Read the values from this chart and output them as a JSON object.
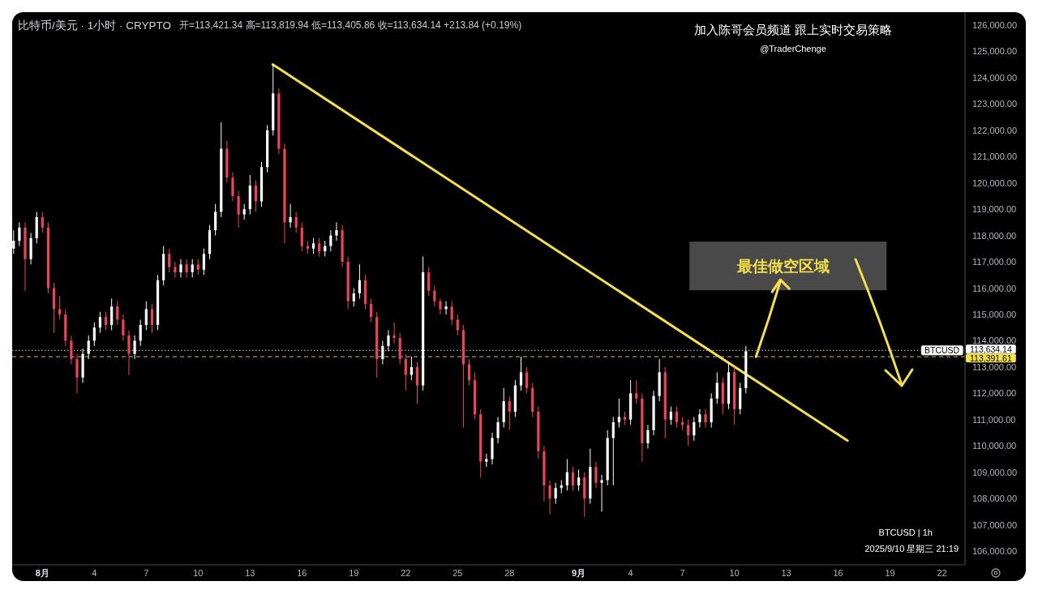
{
  "chart_data": {
    "type": "candlestick",
    "title": "比特币/美元 · 1小时 · CRYPTO",
    "subtitle": "开=113,421.34 高=113,819.94 低=113,405.86 收=113,634.14 +213.84 (+0.19%)",
    "annotations": [
      "加入陈哥会员频道 跟上实时交易策略",
      "@TraderChenge",
      {
        "text": "最佳做空区域",
        "x": "2025-09-11T06:00",
        "y": 113391.61
      },
      {
        "text": "BTCUSD",
        "x": "2025-09-22T00:00",
        "y": 113634.14
      },
      "BTCUSD | 1h",
      "2025/9/10 星期三 21:19"
    ],
    "xlim": [
      "2025-07-30T06:00",
      "2025-09-23T08:00"
    ],
    "xticks": [
      {
        "value": "2025-08-01",
        "label": "8月"
      },
      {
        "value": "2025-08-04",
        "label": "4"
      },
      {
        "value": "2025-08-07",
        "label": "7"
      },
      {
        "value": "2025-08-10",
        "label": "10"
      },
      {
        "value": "2025-08-13",
        "label": "13"
      },
      {
        "value": "2025-08-16",
        "label": "16"
      },
      {
        "value": "2025-08-19",
        "label": "19"
      },
      {
        "value": "2025-08-22",
        "label": "22"
      },
      {
        "value": "2025-08-25",
        "label": "25"
      },
      {
        "value": "2025-08-28",
        "label": "28"
      },
      {
        "value": "2025-09-01",
        "label": "9月"
      },
      {
        "value": "2025-09-04",
        "label": "4"
      },
      {
        "value": "2025-09-07",
        "label": "7"
      },
      {
        "value": "2025-09-10",
        "label": "10"
      },
      {
        "value": "2025-09-13",
        "label": "13"
      },
      {
        "value": "2025-09-16",
        "label": "16"
      },
      {
        "value": "2025-09-19",
        "label": "19"
      },
      {
        "value": "2025-09-22",
        "label": "22"
      }
    ],
    "ylim": [
      105480,
      126490
    ],
    "yticks": [
      {
        "value": 106000,
        "label": "106,000.00"
      },
      {
        "value": 107000,
        "label": "107,000.00"
      },
      {
        "value": 108000,
        "label": "108,000.00"
      },
      {
        "value": 109000,
        "label": "109,000.00"
      },
      {
        "value": 110000,
        "label": "110,000.00"
      },
      {
        "value": 111000,
        "label": "111,000.00"
      },
      {
        "value": 112000,
        "label": "112,000.00"
      },
      {
        "value": 113000,
        "label": "113,000.00"
      },
      {
        "value": 114000,
        "label": "114,000.00"
      },
      {
        "value": 115000,
        "label": "115,000.00"
      },
      {
        "value": 116000,
        "label": "116,000.00"
      },
      {
        "value": 117000,
        "label": "117,000.00"
      },
      {
        "value": 118000,
        "label": "118,000.00"
      },
      {
        "value": 119000,
        "label": "119,000.00"
      },
      {
        "value": 120000,
        "label": "120,000.00"
      },
      {
        "value": 121000,
        "label": "121,000.00"
      },
      {
        "value": 122000,
        "label": "122,000.00"
      },
      {
        "value": 123000,
        "label": "123,000.00"
      },
      {
        "value": 124000,
        "label": "124,000.00"
      },
      {
        "value": 125000,
        "label": "125,000.00"
      },
      {
        "value": 126000,
        "label": "126,000.00"
      }
    ],
    "ref_lines": [
      {
        "axis": "y",
        "value": 113634.14,
        "label": "113,634.14",
        "line_style": "dotted",
        "color": "#ffffff"
      },
      {
        "axis": "y",
        "value": 113391.61,
        "label": "113,391.61",
        "line_style": "dashed",
        "color": "#f4e04d"
      }
    ],
    "series": [
      {
        "type": "line",
        "x": [
          "2025-08-14T07:30",
          "2025-09-16T13:00"
        ],
        "values": [
          124500,
          110200
        ],
        "color": "#f4e04d"
      },
      {
        "type": "candlestick",
        "x": [
          "2025-07-30T08:00",
          "2025-07-30T16:00",
          "2025-07-31T00:00",
          "2025-07-31T08:00",
          "2025-07-31T16:00",
          "2025-08-01T00:00",
          "2025-08-01T08:00",
          "2025-08-01T16:00",
          "2025-08-02T00:00",
          "2025-08-02T08:00",
          "2025-08-02T16:00",
          "2025-08-03T00:00",
          "2025-08-03T08:00",
          "2025-08-03T16:00",
          "2025-08-04T00:00",
          "2025-08-04T08:00",
          "2025-08-04T16:00",
          "2025-08-05T00:00",
          "2025-08-05T08:00",
          "2025-08-05T16:00",
          "2025-08-06T00:00",
          "2025-08-06T08:00",
          "2025-08-06T16:00",
          "2025-08-07T00:00",
          "2025-08-07T08:00",
          "2025-08-07T16:00",
          "2025-08-08T00:00",
          "2025-08-08T08:00",
          "2025-08-08T16:00",
          "2025-08-09T00:00",
          "2025-08-09T08:00",
          "2025-08-09T16:00",
          "2025-08-10T00:00",
          "2025-08-10T08:00",
          "2025-08-10T16:00",
          "2025-08-11T00:00",
          "2025-08-11T08:00",
          "2025-08-11T16:00",
          "2025-08-12T00:00",
          "2025-08-12T08:00",
          "2025-08-12T16:00",
          "2025-08-13T00:00",
          "2025-08-13T08:00",
          "2025-08-13T16:00",
          "2025-08-14T00:00",
          "2025-08-14T08:00",
          "2025-08-14T16:00",
          "2025-08-15T00:00",
          "2025-08-15T08:00",
          "2025-08-15T16:00",
          "2025-08-16T00:00",
          "2025-08-16T08:00",
          "2025-08-16T16:00",
          "2025-08-17T00:00",
          "2025-08-17T08:00",
          "2025-08-17T16:00",
          "2025-08-18T00:00",
          "2025-08-18T08:00",
          "2025-08-18T16:00",
          "2025-08-19T00:00",
          "2025-08-19T08:00",
          "2025-08-19T16:00",
          "2025-08-20T00:00",
          "2025-08-20T08:00",
          "2025-08-20T16:00",
          "2025-08-21T00:00",
          "2025-08-21T08:00",
          "2025-08-21T16:00",
          "2025-08-22T00:00",
          "2025-08-22T08:00",
          "2025-08-22T16:00",
          "2025-08-23T00:00",
          "2025-08-23T08:00",
          "2025-08-23T16:00",
          "2025-08-24T00:00",
          "2025-08-24T08:00",
          "2025-08-24T16:00",
          "2025-08-25T00:00",
          "2025-08-25T08:00",
          "2025-08-25T16:00",
          "2025-08-26T00:00",
          "2025-08-26T08:00",
          "2025-08-26T16:00",
          "2025-08-27T00:00",
          "2025-08-27T08:00",
          "2025-08-27T16:00",
          "2025-08-28T00:00",
          "2025-08-28T08:00",
          "2025-08-28T16:00",
          "2025-08-29T00:00",
          "2025-08-29T08:00",
          "2025-08-29T16:00",
          "2025-08-30T00:00",
          "2025-08-30T08:00",
          "2025-08-30T16:00",
          "2025-08-31T00:00",
          "2025-08-31T08:00",
          "2025-08-31T16:00",
          "2025-09-01T00:00",
          "2025-09-01T08:00",
          "2025-09-01T16:00",
          "2025-09-02T00:00",
          "2025-09-02T08:00",
          "2025-09-02T16:00",
          "2025-09-03T00:00",
          "2025-09-03T08:00",
          "2025-09-03T16:00",
          "2025-09-04T00:00",
          "2025-09-04T08:00",
          "2025-09-04T16:00",
          "2025-09-05T00:00",
          "2025-09-05T08:00",
          "2025-09-05T16:00",
          "2025-09-06T00:00",
          "2025-09-06T08:00",
          "2025-09-06T16:00",
          "2025-09-07T00:00",
          "2025-09-07T08:00",
          "2025-09-07T16:00",
          "2025-09-08T00:00",
          "2025-09-08T08:00",
          "2025-09-08T16:00",
          "2025-09-09T00:00",
          "2025-09-09T08:00",
          "2025-09-09T16:00",
          "2025-09-10T00:00",
          "2025-09-10T08:00",
          "2025-09-10T16:00"
        ],
        "ohlc": [
          [
            117500,
            118200,
            117300,
            117800
          ],
          [
            117800,
            118500,
            117600,
            118300
          ],
          [
            118300,
            118500,
            115900,
            117100
          ],
          [
            117100,
            118100,
            116900,
            117900
          ],
          [
            117900,
            118900,
            117700,
            118700
          ],
          [
            118700,
            118900,
            118100,
            118300
          ],
          [
            118300,
            118500,
            115800,
            116000
          ],
          [
            116000,
            116200,
            114300,
            115200
          ],
          [
            115200,
            115700,
            114800,
            115000
          ],
          [
            115000,
            115200,
            113800,
            114000
          ],
          [
            114000,
            114200,
            113100,
            113300
          ],
          [
            113300,
            113500,
            112000,
            112600
          ],
          [
            112600,
            113700,
            112400,
            113500
          ],
          [
            113500,
            114200,
            113300,
            114000
          ],
          [
            114000,
            114700,
            113800,
            114500
          ],
          [
            114500,
            115100,
            114300,
            114900
          ],
          [
            114900,
            115100,
            114400,
            114600
          ],
          [
            114600,
            115600,
            114400,
            115300
          ],
          [
            115300,
            115500,
            114600,
            114800
          ],
          [
            114800,
            115000,
            114000,
            114200
          ],
          [
            114200,
            114400,
            112700,
            113500
          ],
          [
            113500,
            114200,
            113300,
            114000
          ],
          [
            114000,
            114800,
            113800,
            114600
          ],
          [
            114600,
            115500,
            114400,
            115200
          ],
          [
            115200,
            115400,
            114300,
            114600
          ],
          [
            114600,
            116500,
            114400,
            116300
          ],
          [
            116300,
            117600,
            116100,
            117300
          ],
          [
            117300,
            117500,
            116600,
            116800
          ],
          [
            116800,
            117000,
            116400,
            116600
          ],
          [
            116600,
            117100,
            116400,
            116900
          ],
          [
            116900,
            117100,
            116400,
            116600
          ],
          [
            116600,
            117100,
            116400,
            116900
          ],
          [
            116900,
            117100,
            116500,
            116700
          ],
          [
            116700,
            117500,
            116500,
            117300
          ],
          [
            117300,
            118400,
            117100,
            118200
          ],
          [
            118200,
            119200,
            118000,
            118900
          ],
          [
            118900,
            122300,
            118700,
            121300
          ],
          [
            121300,
            121600,
            120000,
            120200
          ],
          [
            120200,
            120400,
            119300,
            119500
          ],
          [
            119500,
            119700,
            118300,
            118800
          ],
          [
            118800,
            119200,
            118600,
            119000
          ],
          [
            119000,
            120300,
            118800,
            119900
          ],
          [
            119900,
            120100,
            118900,
            119300
          ],
          [
            119300,
            120800,
            119100,
            120600
          ],
          [
            120600,
            122200,
            120400,
            122000
          ],
          [
            122000,
            124500,
            121800,
            123400
          ],
          [
            123400,
            123600,
            121100,
            121300
          ],
          [
            121300,
            121500,
            117700,
            118500
          ],
          [
            118500,
            119200,
            118300,
            118700
          ],
          [
            118700,
            118900,
            118100,
            118300
          ],
          [
            118300,
            118500,
            117400,
            117600
          ],
          [
            117600,
            117800,
            117300,
            117500
          ],
          [
            117500,
            117900,
            117300,
            117700
          ],
          [
            117700,
            117900,
            117200,
            117400
          ],
          [
            117400,
            117800,
            117200,
            117600
          ],
          [
            117600,
            118200,
            117400,
            118000
          ],
          [
            118000,
            118500,
            117800,
            118200
          ],
          [
            118200,
            118400,
            116800,
            117000
          ],
          [
            117000,
            117200,
            115200,
            115500
          ],
          [
            115500,
            116000,
            115300,
            115800
          ],
          [
            115800,
            116900,
            115600,
            116300
          ],
          [
            116300,
            116500,
            115200,
            115400
          ],
          [
            115400,
            115600,
            114700,
            114900
          ],
          [
            114900,
            115100,
            112600,
            113300
          ],
          [
            113300,
            114000,
            113100,
            113800
          ],
          [
            113800,
            114400,
            113600,
            114200
          ],
          [
            114200,
            114700,
            113900,
            114100
          ],
          [
            114100,
            114300,
            113100,
            113300
          ],
          [
            113300,
            113500,
            112100,
            112700
          ],
          [
            112700,
            113400,
            112500,
            113000
          ],
          [
            113000,
            113200,
            111600,
            112300
          ],
          [
            112300,
            117200,
            112100,
            116600
          ],
          [
            116600,
            116800,
            115700,
            115900
          ],
          [
            115900,
            116100,
            115300,
            115500
          ],
          [
            115500,
            115600,
            115000,
            115200
          ],
          [
            115200,
            115500,
            115000,
            115300
          ],
          [
            115300,
            115500,
            114600,
            114800
          ],
          [
            114800,
            115000,
            114200,
            114400
          ],
          [
            114400,
            114600,
            110700,
            113100
          ],
          [
            113100,
            113300,
            112300,
            112500
          ],
          [
            112500,
            112800,
            111000,
            111200
          ],
          [
            111200,
            111400,
            108800,
            109400
          ],
          [
            109400,
            109700,
            109200,
            109500
          ],
          [
            109500,
            110500,
            109300,
            110300
          ],
          [
            110300,
            111100,
            110100,
            110900
          ],
          [
            110900,
            112200,
            110700,
            111700
          ],
          [
            111700,
            111900,
            110600,
            111300
          ],
          [
            111300,
            112500,
            111100,
            112300
          ],
          [
            112300,
            113400,
            112100,
            112800
          ],
          [
            112800,
            113000,
            112000,
            112200
          ],
          [
            112200,
            112400,
            111100,
            111300
          ],
          [
            111300,
            111500,
            109500,
            109800
          ],
          [
            109800,
            110000,
            107900,
            108500
          ],
          [
            108500,
            108700,
            107400,
            108000
          ],
          [
            108000,
            108600,
            107800,
            108400
          ],
          [
            108400,
            108700,
            108200,
            108500
          ],
          [
            108500,
            109500,
            108300,
            109000
          ],
          [
            109000,
            109200,
            108300,
            108500
          ],
          [
            108500,
            109100,
            108300,
            108800
          ],
          [
            108800,
            109000,
            107300,
            108000
          ],
          [
            108000,
            109900,
            107800,
            109200
          ],
          [
            109200,
            109400,
            108400,
            108600
          ],
          [
            108600,
            108900,
            107500,
            108700
          ],
          [
            108700,
            110600,
            108500,
            110300
          ],
          [
            110300,
            111100,
            108500,
            110900
          ],
          [
            110900,
            111800,
            110700,
            111100
          ],
          [
            111100,
            111300,
            110800,
            111000
          ],
          [
            111000,
            112500,
            110800,
            112000
          ],
          [
            112000,
            112500,
            111600,
            111800
          ],
          [
            111800,
            112000,
            109400,
            110100
          ],
          [
            110100,
            110800,
            109900,
            110600
          ],
          [
            110600,
            112100,
            110400,
            111900
          ],
          [
            111900,
            113300,
            111700,
            112800
          ],
          [
            112800,
            113000,
            110300,
            111000
          ],
          [
            111000,
            111500,
            110800,
            111300
          ],
          [
            111300,
            111500,
            110700,
            110900
          ],
          [
            110900,
            111100,
            110600,
            110800
          ],
          [
            110800,
            111000,
            110000,
            110400
          ],
          [
            110400,
            111100,
            110200,
            110900
          ],
          [
            110900,
            111400,
            110700,
            111200
          ],
          [
            111200,
            111400,
            110700,
            110900
          ],
          [
            110900,
            112000,
            110700,
            111800
          ],
          [
            111800,
            112800,
            111600,
            112400
          ],
          [
            112400,
            112600,
            111200,
            111600
          ],
          [
            111600,
            113200,
            111400,
            112800
          ],
          [
            112800,
            113000,
            110800,
            111400
          ],
          [
            111400,
            112400,
            111200,
            112200
          ],
          [
            112200,
            113800,
            112000,
            113600
          ]
        ],
        "colors": [
          "#ffffff",
          "#ffffff",
          "#f0435a",
          "#ffffff",
          "#ffffff",
          "#f0435a",
          "#f0435a",
          "#f0435a",
          "#f0435a",
          "#f0435a",
          "#f0435a",
          "#f0435a",
          "#ffffff",
          "#ffffff",
          "#ffffff",
          "#ffffff",
          "#f0435a",
          "#ffffff",
          "#f0435a",
          "#f0435a",
          "#f0435a",
          "#ffffff",
          "#ffffff",
          "#ffffff",
          "#f0435a",
          "#ffffff",
          "#ffffff",
          "#f0435a",
          "#f0435a",
          "#ffffff",
          "#f0435a",
          "#ffffff",
          "#f0435a",
          "#ffffff",
          "#ffffff",
          "#ffffff",
          "#ffffff",
          "#f0435a",
          "#f0435a",
          "#f0435a",
          "#ffffff",
          "#ffffff",
          "#f0435a",
          "#ffffff",
          "#ffffff",
          "#ffffff",
          "#f0435a",
          "#f0435a",
          "#ffffff",
          "#f0435a",
          "#f0435a",
          "#f0435a",
          "#ffffff",
          "#f0435a",
          "#ffffff",
          "#ffffff",
          "#ffffff",
          "#f0435a",
          "#f0435a",
          "#ffffff",
          "#ffffff",
          "#f0435a",
          "#f0435a",
          "#f0435a",
          "#ffffff",
          "#ffffff",
          "#f0435a",
          "#f0435a",
          "#f0435a",
          "#ffffff",
          "#f0435a",
          "#ffffff",
          "#f0435a",
          "#f0435a",
          "#f0435a",
          "#ffffff",
          "#f0435a",
          "#f0435a",
          "#f0435a",
          "#f0435a",
          "#f0435a",
          "#f0435a",
          "#ffffff",
          "#ffffff",
          "#ffffff",
          "#ffffff",
          "#f0435a",
          "#ffffff",
          "#ffffff",
          "#f0435a",
          "#f0435a",
          "#f0435a",
          "#f0435a",
          "#f0435a",
          "#ffffff",
          "#ffffff",
          "#ffffff",
          "#f0435a",
          "#ffffff",
          "#f0435a",
          "#ffffff",
          "#f0435a",
          "#ffffff",
          "#ffffff",
          "#ffffff",
          "#ffffff",
          "#f0435a",
          "#ffffff",
          "#f0435a",
          "#f0435a",
          "#ffffff",
          "#ffffff",
          "#ffffff",
          "#f0435a",
          "#ffffff",
          "#f0435a",
          "#f0435a",
          "#f0435a",
          "#ffffff",
          "#ffffff",
          "#f0435a",
          "#ffffff",
          "#ffffff",
          "#f0435a",
          "#ffffff",
          "#f0435a",
          "#ffffff",
          "#ffffff"
        ]
      }
    ]
  }
}
